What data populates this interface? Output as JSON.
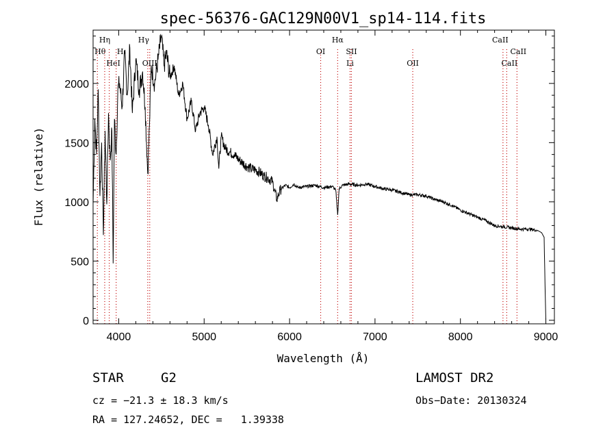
{
  "chart_data": {
    "type": "line",
    "title": "spec-56376-GAC129N00V1_sp14-114.fits",
    "xlabel": "Wavelength (Å)",
    "ylabel": "Flux (relative)",
    "xlim": [
      3700,
      9100
    ],
    "ylim": [
      -30,
      2450
    ],
    "xticks": [
      "4000",
      "5000",
      "6000",
      "7000",
      "8000",
      "9000"
    ],
    "yticks": [
      "0",
      "500",
      "1000",
      "1500",
      "2000"
    ],
    "series": [
      {
        "x": [
          3700,
          3720,
          3740,
          3760,
          3780,
          3800,
          3820,
          3840,
          3860,
          3880,
          3900,
          3920,
          3935,
          3950,
          3970,
          3990,
          4010,
          4040,
          4070,
          4100,
          4130,
          4160,
          4200,
          4240,
          4280,
          4310,
          4340,
          4360,
          4380,
          4420,
          4460,
          4500,
          4530,
          4560,
          4600,
          4650,
          4700,
          4750,
          4800,
          4850,
          4900,
          4950,
          5000,
          5050,
          5100,
          5150,
          5172,
          5200,
          5250,
          5300,
          5350,
          5400,
          5450,
          5500,
          5550,
          5600,
          5650,
          5700,
          5750,
          5800,
          5850,
          5890,
          5950,
          6000,
          6050,
          6100,
          6200,
          6300,
          6400,
          6500,
          6540,
          6563,
          6580,
          6620,
          6700,
          6800,
          6900,
          7000,
          7100,
          7200,
          7300,
          7400,
          7500,
          7600,
          7700,
          7800,
          7900,
          8000,
          8100,
          8200,
          8300,
          8400,
          8500,
          8600,
          8700,
          8800,
          8900,
          8950,
          8980,
          8990,
          9000
        ],
        "values": [
          980,
          1700,
          1400,
          1950,
          1050,
          1500,
          720,
          1600,
          980,
          1750,
          1350,
          1600,
          480,
          1700,
          1400,
          1950,
          2000,
          1800,
          2250,
          1900,
          2300,
          1750,
          2200,
          1950,
          2100,
          1800,
          1240,
          1650,
          2150,
          2000,
          2200,
          2400,
          2150,
          2250,
          2050,
          2150,
          1900,
          2000,
          1700,
          1850,
          1600,
          1750,
          1800,
          1650,
          1400,
          1550,
          1280,
          1550,
          1450,
          1420,
          1400,
          1360,
          1330,
          1300,
          1280,
          1270,
          1250,
          1220,
          1200,
          1170,
          1020,
          1100,
          1140,
          1120,
          1150,
          1120,
          1130,
          1140,
          1120,
          1130,
          1100,
          890,
          1110,
          1140,
          1150,
          1140,
          1150,
          1130,
          1110,
          1100,
          1080,
          1060,
          1060,
          1050,
          1020,
          1000,
          970,
          930,
          900,
          870,
          840,
          800,
          790,
          780,
          770,
          770,
          760,
          740,
          700,
          300,
          0
        ]
      }
    ],
    "lines": [
      {
        "x": 3750,
        "label": "Hθ"
      },
      {
        "x": 3836,
        "label": "Hη"
      },
      {
        "x": 3889,
        "label": "HeI"
      },
      {
        "x": 3970,
        "label": "H"
      },
      {
        "x": 4340,
        "label": "Hγ"
      },
      {
        "x": 4363,
        "label": "OIII"
      },
      {
        "x": 6364,
        "label": "OI"
      },
      {
        "x": 6563,
        "label": "Hα"
      },
      {
        "x": 6708,
        "label": "Li"
      },
      {
        "x": 6724,
        "label": "SII"
      },
      {
        "x": 7442,
        "label": "OII"
      },
      {
        "x": 8498,
        "label": "CaII"
      },
      {
        "x": 8542,
        "label": "CaII"
      },
      {
        "x": 8662,
        "label": "CaII"
      }
    ]
  },
  "info": {
    "star_type": "STAR",
    "subclass": "G2",
    "survey": "LAMOST DR2",
    "cz": "cz = −21.3 ± 18.3 km/s",
    "obs_date": "Obs−Date: 20130324",
    "radec": "RA = 127.24652, DEC =   1.39338"
  }
}
